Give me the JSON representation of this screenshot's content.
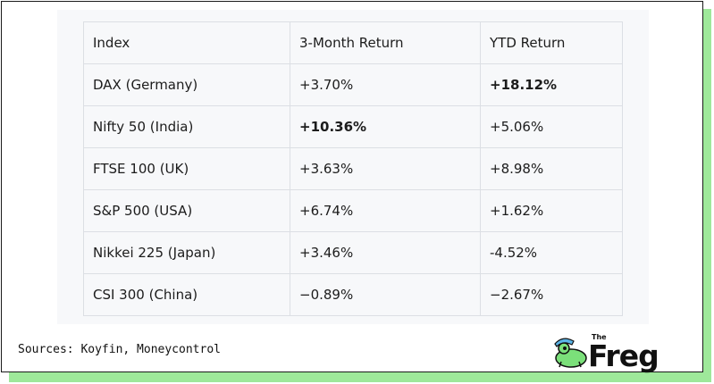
{
  "table": {
    "headers": [
      "Index",
      "3-Month Return",
      "YTD Return"
    ],
    "rows": [
      {
        "index": "DAX (Germany)",
        "three_month": "+3.70%",
        "ytd": "+18.12%",
        "bold": "ytd"
      },
      {
        "index": "Nifty 50 (India)",
        "three_month": "+10.36%",
        "ytd": "+5.06%",
        "bold": "three_month"
      },
      {
        "index": "FTSE 100 (UK)",
        "three_month": "+3.63%",
        "ytd": "+8.98%",
        "bold": ""
      },
      {
        "index": "S&P 500 (USA)",
        "three_month": "+6.74%",
        "ytd": "+1.62%",
        "bold": ""
      },
      {
        "index": "Nikkei 225 (Japan)",
        "three_month": "+3.46%",
        "ytd": "-4.52%",
        "bold": ""
      },
      {
        "index": "CSI 300 (China)",
        "three_month": "−0.89%",
        "ytd": "−2.67%",
        "bold": ""
      }
    ]
  },
  "footer": {
    "sources": "Sources: Koyfin, Moneycontrol"
  },
  "logo": {
    "the": "The",
    "name": "Freg"
  },
  "colors": {
    "shadow": "#9ee89a",
    "panel": "#f7f8fa",
    "logo_frog": "#7be07a",
    "logo_hat": "#5ab4e8"
  }
}
